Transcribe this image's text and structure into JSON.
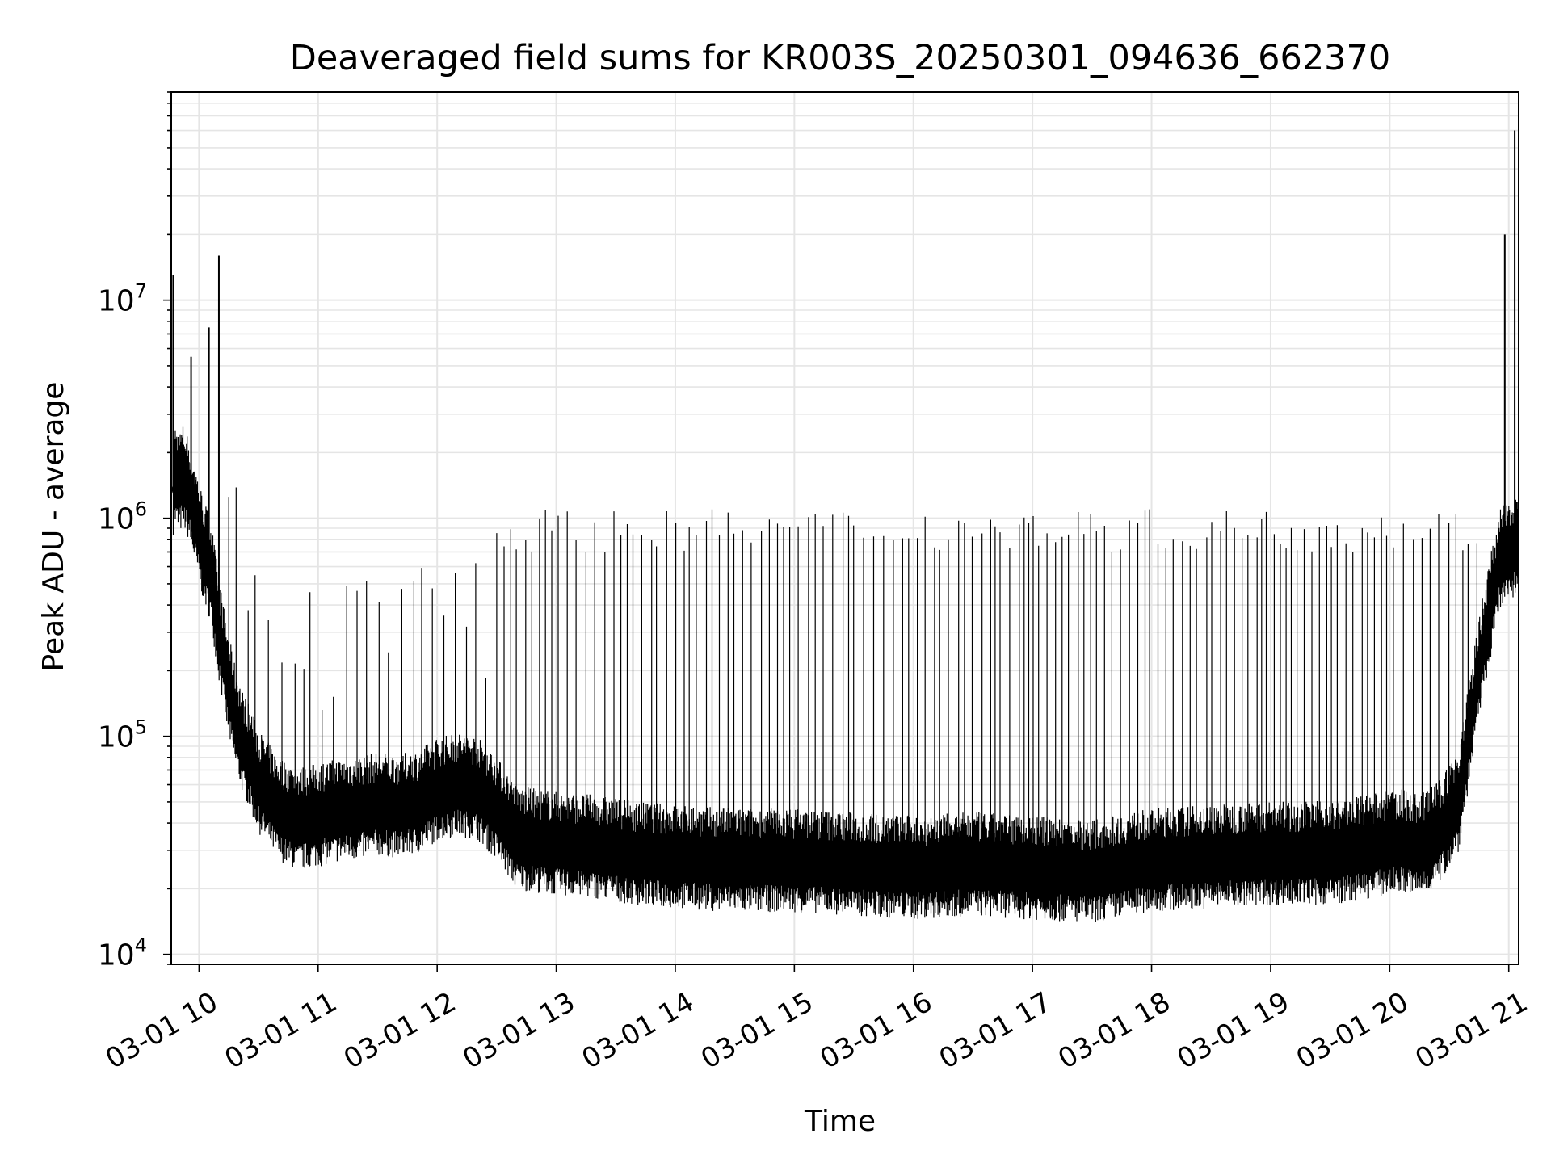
{
  "chart_data": {
    "type": "line",
    "title": "Deaveraged field sums for KR003S_20250301_094636_662370",
    "xlabel": "Time",
    "ylabel": "Peak ADU - average",
    "yscale": "log",
    "grid": true,
    "line_color": "#000000",
    "grid_color": "#e5e5e5",
    "xlim": [
      "2025-03-01 09:46",
      "2025-03-01 21:05"
    ],
    "ylim": [
      9000,
      90000000
    ],
    "xticks": [
      {
        "value": "2025-03-01 10:00",
        "label": "03-01 10"
      },
      {
        "value": "2025-03-01 11:00",
        "label": "03-01 11"
      },
      {
        "value": "2025-03-01 12:00",
        "label": "03-01 12"
      },
      {
        "value": "2025-03-01 13:00",
        "label": "03-01 13"
      },
      {
        "value": "2025-03-01 14:00",
        "label": "03-01 14"
      },
      {
        "value": "2025-03-01 15:00",
        "label": "03-01 15"
      },
      {
        "value": "2025-03-01 16:00",
        "label": "03-01 16"
      },
      {
        "value": "2025-03-01 17:00",
        "label": "03-01 17"
      },
      {
        "value": "2025-03-01 18:00",
        "label": "03-01 18"
      },
      {
        "value": "2025-03-01 19:00",
        "label": "03-01 19"
      },
      {
        "value": "2025-03-01 20:00",
        "label": "03-01 20"
      },
      {
        "value": "2025-03-01 21:00",
        "label": "03-01 21"
      }
    ],
    "yticks": [
      {
        "value": 10000,
        "base": "10",
        "exp": "4"
      },
      {
        "value": 100000,
        "base": "10",
        "exp": "5"
      },
      {
        "value": 1000000,
        "base": "10",
        "exp": "6"
      },
      {
        "value": 10000000,
        "base": "10",
        "exp": "7"
      }
    ],
    "series": [
      {
        "x": [
          "2025-03-01 09:46",
          "2025-03-01 09:48",
          "2025-03-01 09:50",
          "2025-03-01 09:52",
          "2025-03-01 09:55",
          "2025-03-01 09:58",
          "2025-03-01 10:02",
          "2025-03-01 10:06",
          "2025-03-01 10:10",
          "2025-03-01 10:14",
          "2025-03-01 10:18",
          "2025-03-01 10:22",
          "2025-03-01 10:26",
          "2025-03-01 10:30",
          "2025-03-01 10:35",
          "2025-03-01 10:40",
          "2025-03-01 10:45",
          "2025-03-01 10:50",
          "2025-03-01 11:00",
          "2025-03-01 11:10",
          "2025-03-01 11:20",
          "2025-03-01 11:30",
          "2025-03-01 11:40",
          "2025-03-01 11:50",
          "2025-03-01 12:00",
          "2025-03-01 12:10",
          "2025-03-01 12:20",
          "2025-03-01 12:30",
          "2025-03-01 12:40",
          "2025-03-01 12:50",
          "2025-03-01 13:00",
          "2025-03-01 13:20",
          "2025-03-01 13:40",
          "2025-03-01 14:00",
          "2025-03-01 14:30",
          "2025-03-01 15:00",
          "2025-03-01 15:30",
          "2025-03-01 16:00",
          "2025-03-01 16:30",
          "2025-03-01 17:00",
          "2025-03-01 17:30",
          "2025-03-01 18:00",
          "2025-03-01 18:30",
          "2025-03-01 19:00",
          "2025-03-01 19:30",
          "2025-03-01 19:50",
          "2025-03-01 20:05",
          "2025-03-01 20:15",
          "2025-03-01 20:25",
          "2025-03-01 20:35",
          "2025-03-01 20:45",
          "2025-03-01 20:55",
          "2025-03-01 21:00",
          "2025-03-01 21:05"
        ],
        "y": [
          1300000,
          1500000,
          1400000,
          1500000,
          1300000,
          1000000,
          700000,
          550000,
          300000,
          180000,
          120000,
          90000,
          75000,
          60000,
          52000,
          45000,
          42000,
          40000,
          42000,
          44000,
          45000,
          47000,
          46000,
          48000,
          55000,
          58000,
          56000,
          45000,
          33000,
          32000,
          31000,
          30000,
          28000,
          27000,
          26000,
          26000,
          25000,
          24000,
          25000,
          24000,
          23000,
          26000,
          27000,
          28000,
          28000,
          30000,
          32000,
          30000,
          35000,
          50000,
          200000,
          600000,
          700000,
          750000
        ]
      }
    ],
    "spikes": [
      {
        "x": "2025-03-01 09:47",
        "y": 13000000
      },
      {
        "x": "2025-03-01 09:56",
        "y": 5500000
      },
      {
        "x": "2025-03-01 10:05",
        "y": 7500000
      },
      {
        "x": "2025-03-01 10:10",
        "y": 16000000
      },
      {
        "x": "2025-03-01 20:58",
        "y": 20000000
      },
      {
        "x": "2025-03-01 21:03",
        "y": 60000000
      }
    ]
  }
}
